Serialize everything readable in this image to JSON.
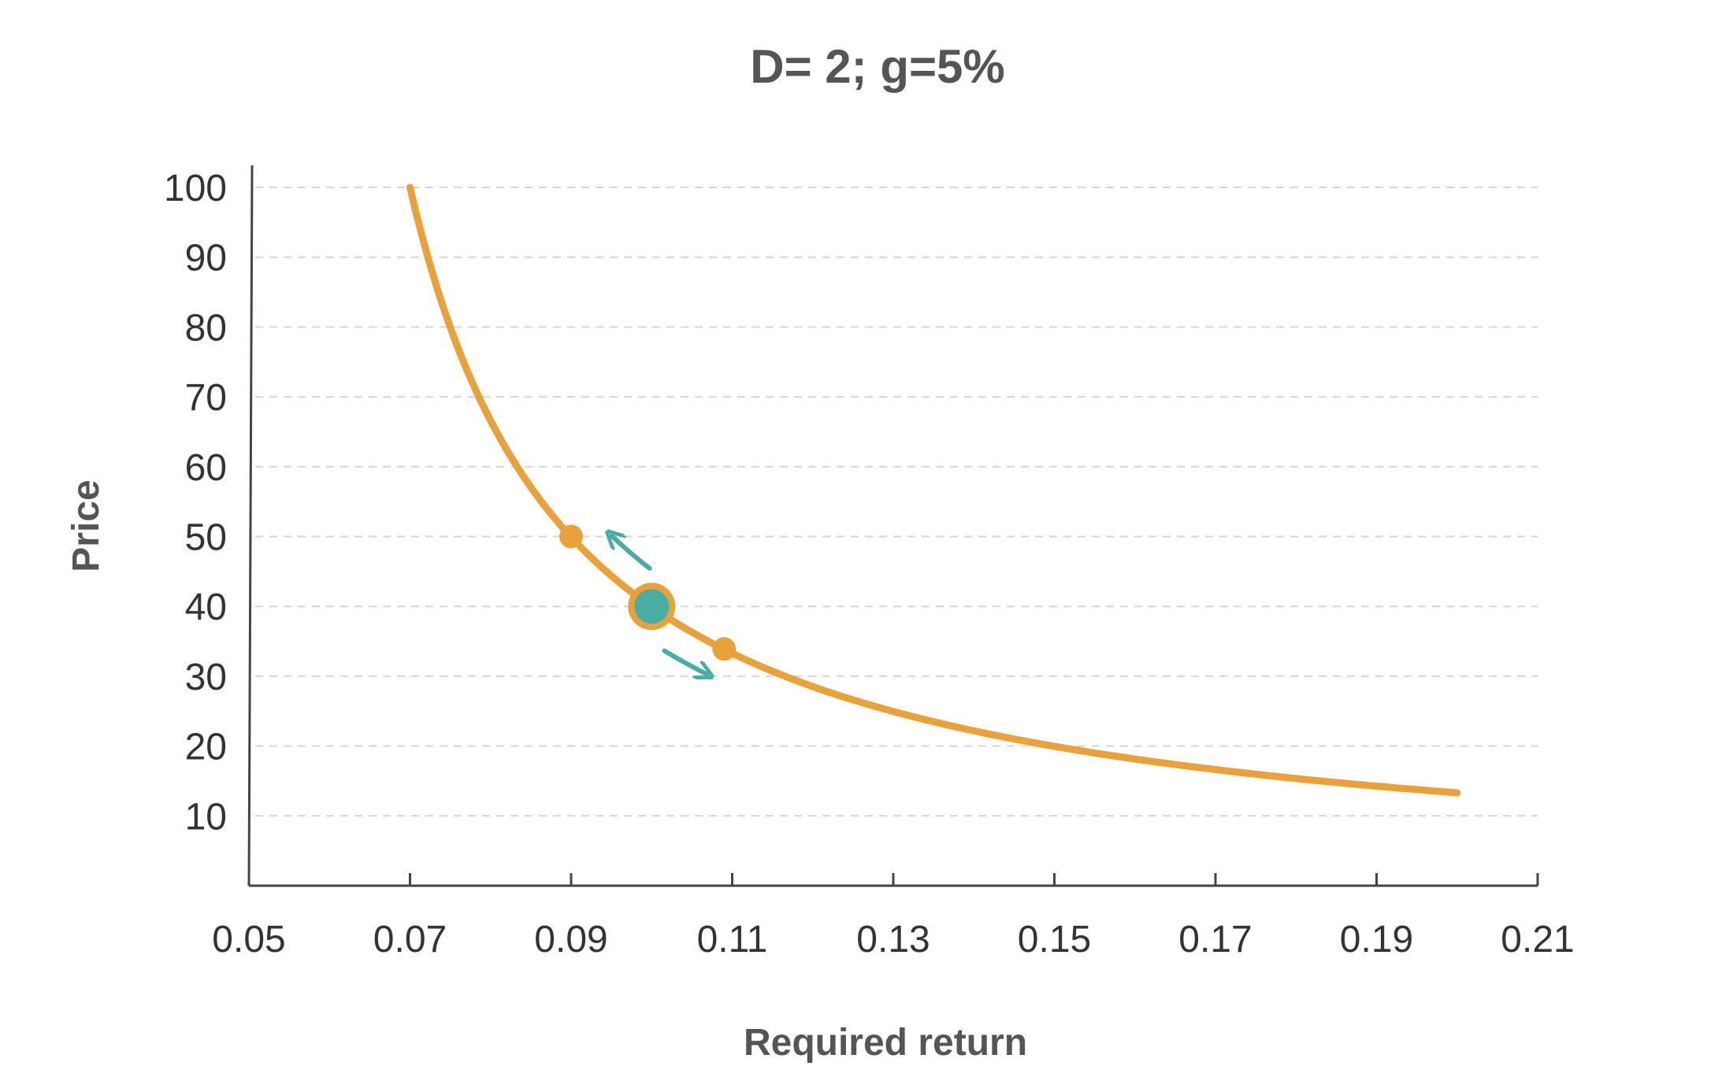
{
  "chart_data": {
    "type": "line",
    "title": "D= 2; g=5%",
    "xlabel": "Required return",
    "ylabel": "Price",
    "xlim": [
      0.05,
      0.21
    ],
    "ylim": [
      0,
      100
    ],
    "x_ticks": [
      "0.05",
      "0.07",
      "0.09",
      "0.11",
      "0.13",
      "0.15",
      "0.17",
      "0.19",
      "0.21"
    ],
    "x_tick_values": [
      0.05,
      0.07,
      0.09,
      0.11,
      0.13,
      0.15,
      0.17,
      0.19,
      0.21
    ],
    "y_ticks": [
      "10",
      "20",
      "30",
      "40",
      "50",
      "60",
      "70",
      "80",
      "90",
      "100"
    ],
    "y_tick_values": [
      10,
      20,
      30,
      40,
      50,
      60,
      70,
      80,
      90,
      100
    ],
    "grid": "horizontal dashed",
    "series": [
      {
        "color": "#E9A23B",
        "x": [
          0.07,
          0.075,
          0.08,
          0.085,
          0.09,
          0.095,
          0.1,
          0.105,
          0.109,
          0.115,
          0.12,
          0.13,
          0.14,
          0.15,
          0.16,
          0.17,
          0.18,
          0.19,
          0.2
        ],
        "y": [
          100,
          80,
          66.7,
          57.1,
          50,
          44.4,
          40,
          36.4,
          33.9,
          30.8,
          28.6,
          25,
          22.2,
          20,
          18.2,
          16.7,
          15.4,
          14.3,
          13.3
        ]
      }
    ],
    "highlighted_points": [
      {
        "x": 0.09,
        "y": 50,
        "color": "#E9A23B"
      },
      {
        "x": 0.1,
        "y": 40,
        "color": "#4AADA3",
        "ring_color": "#E9A23B"
      },
      {
        "x": 0.109,
        "y": 33.9,
        "color": "#E9A23B"
      }
    ],
    "annotations": [
      {
        "type": "arrow",
        "direction": "up-left along curve",
        "color": "#4AADA3"
      },
      {
        "type": "arrow",
        "direction": "down-right along curve",
        "color": "#4AADA3"
      }
    ]
  }
}
